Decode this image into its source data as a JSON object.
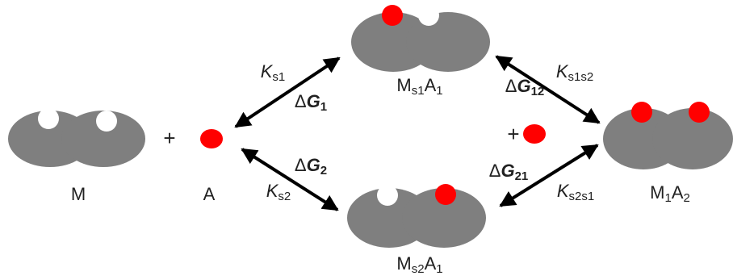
{
  "species": [
    {
      "parts": [
        {
          "base": "M"
        }
      ]
    },
    {
      "parts": [
        {
          "base": "A"
        }
      ]
    },
    {
      "parts": [
        {
          "base": "M",
          "sub": "s1"
        },
        {
          "base": "A",
          "sub": "1"
        }
      ]
    },
    {
      "parts": [
        {
          "base": "M",
          "sub": "s2"
        },
        {
          "base": "A",
          "sub": "1"
        }
      ]
    },
    {
      "parts": [
        {
          "base": "M",
          "sub": "1"
        },
        {
          "base": "A",
          "sub": "2"
        }
      ]
    }
  ],
  "operators": [
    "+",
    "+"
  ],
  "constants": [
    {
      "symbol": "K",
      "sub": "s1"
    },
    {
      "symbol": "K",
      "sub": "s2"
    },
    {
      "symbol": "K",
      "sub": "s1s2"
    },
    {
      "symbol": "K",
      "sub": "s2s1"
    }
  ],
  "energies": [
    {
      "prefix": "Δ",
      "symbol": "G",
      "sub": "1"
    },
    {
      "prefix": "Δ",
      "symbol": "G",
      "sub": "2"
    },
    {
      "prefix": "Δ",
      "symbol": "G",
      "sub": "12"
    },
    {
      "prefix": "Δ",
      "symbol": "G",
      "sub": "21"
    }
  ]
}
